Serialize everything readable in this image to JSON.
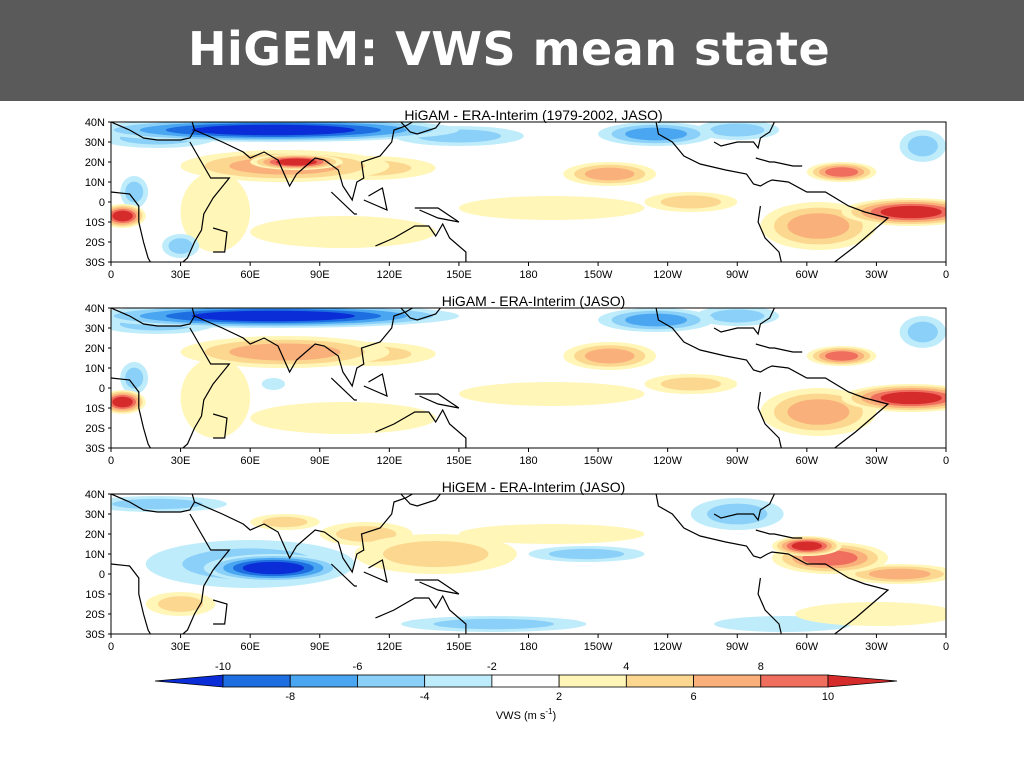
{
  "slide": {
    "title": "HiGEM: VWS mean state"
  },
  "panels": [
    {
      "title": "HiGAM - ERA-Interim (1979-2002, JASO)",
      "blobs": [
        {
          "lon": 70,
          "lat": 36,
          "rx": 80,
          "ry": 6,
          "val": -12
        },
        {
          "lon": 20,
          "lat": 32,
          "rx": 25,
          "ry": 5,
          "val": -5
        },
        {
          "lon": 150,
          "lat": 33,
          "rx": 28,
          "ry": 5,
          "val": -5
        },
        {
          "lon": 235,
          "lat": 34,
          "rx": 25,
          "ry": 6,
          "val": -6
        },
        {
          "lon": 270,
          "lat": 36,
          "rx": 18,
          "ry": 5,
          "val": -5
        },
        {
          "lon": 350,
          "lat": 28,
          "rx": 10,
          "ry": 8,
          "val": -5
        },
        {
          "lon": 10,
          "lat": 5,
          "rx": 6,
          "ry": 8,
          "val": -4
        },
        {
          "lon": 30,
          "lat": -22,
          "rx": 8,
          "ry": 6,
          "val": -4
        },
        {
          "lon": 75,
          "lat": 18,
          "rx": 45,
          "ry": 8,
          "val": 7
        },
        {
          "lon": 80,
          "lat": 20,
          "rx": 20,
          "ry": 4,
          "val": 10
        },
        {
          "lon": 110,
          "lat": 17,
          "rx": 30,
          "ry": 6,
          "val": 5
        },
        {
          "lon": 215,
          "lat": 14,
          "rx": 20,
          "ry": 6,
          "val": 7
        },
        {
          "lon": 315,
          "lat": 15,
          "rx": 15,
          "ry": 5,
          "val": 9
        },
        {
          "lon": 5,
          "lat": -7,
          "rx": 10,
          "ry": 6,
          "val": 10
        },
        {
          "lon": 345,
          "lat": -5,
          "rx": 30,
          "ry": 7,
          "val": 10
        },
        {
          "lon": 305,
          "lat": -12,
          "rx": 25,
          "ry": 12,
          "val": 6
        },
        {
          "lon": 250,
          "lat": 0,
          "rx": 20,
          "ry": 5,
          "val": 5
        },
        {
          "lon": 100,
          "lat": -15,
          "rx": 40,
          "ry": 8,
          "val": 3
        },
        {
          "lon": 190,
          "lat": -3,
          "rx": 40,
          "ry": 6,
          "val": 3
        },
        {
          "lon": 45,
          "lat": -5,
          "rx": 15,
          "ry": 20,
          "val": 3
        }
      ]
    },
    {
      "title": "HiGAM - ERA-Interim (JASO)",
      "blobs": [
        {
          "lon": 70,
          "lat": 36,
          "rx": 80,
          "ry": 6,
          "val": -12
        },
        {
          "lon": 20,
          "lat": 32,
          "rx": 25,
          "ry": 5,
          "val": -5
        },
        {
          "lon": 235,
          "lat": 34,
          "rx": 25,
          "ry": 6,
          "val": -6
        },
        {
          "lon": 270,
          "lat": 36,
          "rx": 18,
          "ry": 5,
          "val": -5
        },
        {
          "lon": 350,
          "lat": 28,
          "rx": 10,
          "ry": 8,
          "val": -5
        },
        {
          "lon": 10,
          "lat": 5,
          "rx": 6,
          "ry": 8,
          "val": -4
        },
        {
          "lon": 70,
          "lat": 2,
          "rx": 5,
          "ry": 3,
          "val": -3
        },
        {
          "lon": 75,
          "lat": 18,
          "rx": 45,
          "ry": 8,
          "val": 7
        },
        {
          "lon": 110,
          "lat": 17,
          "rx": 30,
          "ry": 6,
          "val": 5
        },
        {
          "lon": 215,
          "lat": 16,
          "rx": 20,
          "ry": 7,
          "val": 7
        },
        {
          "lon": 315,
          "lat": 16,
          "rx": 15,
          "ry": 5,
          "val": 9
        },
        {
          "lon": 5,
          "lat": -7,
          "rx": 10,
          "ry": 6,
          "val": 10
        },
        {
          "lon": 345,
          "lat": -5,
          "rx": 30,
          "ry": 7,
          "val": 10
        },
        {
          "lon": 305,
          "lat": -12,
          "rx": 25,
          "ry": 12,
          "val": 6
        },
        {
          "lon": 250,
          "lat": 2,
          "rx": 20,
          "ry": 5,
          "val": 5
        },
        {
          "lon": 100,
          "lat": -15,
          "rx": 40,
          "ry": 8,
          "val": 3
        },
        {
          "lon": 190,
          "lat": -3,
          "rx": 40,
          "ry": 6,
          "val": 3
        },
        {
          "lon": 45,
          "lat": -5,
          "rx": 15,
          "ry": 20,
          "val": 3
        }
      ]
    },
    {
      "title": "HiGEM - ERA-Interim (JASO)",
      "blobs": [
        {
          "lon": 70,
          "lat": 3,
          "rx": 30,
          "ry": 7,
          "val": -10
        },
        {
          "lon": 60,
          "lat": 5,
          "rx": 45,
          "ry": 12,
          "val": -5
        },
        {
          "lon": 20,
          "lat": 35,
          "rx": 30,
          "ry": 4,
          "val": -4
        },
        {
          "lon": 165,
          "lat": -25,
          "rx": 40,
          "ry": 4,
          "val": -4
        },
        {
          "lon": 205,
          "lat": 10,
          "rx": 25,
          "ry": 4,
          "val": -4
        },
        {
          "lon": 270,
          "lat": 30,
          "rx": 20,
          "ry": 8,
          "val": -4
        },
        {
          "lon": 290,
          "lat": -25,
          "rx": 30,
          "ry": 4,
          "val": -3
        },
        {
          "lon": 310,
          "lat": 8,
          "rx": 25,
          "ry": 8,
          "val": 9
        },
        {
          "lon": 300,
          "lat": 14,
          "rx": 15,
          "ry": 5,
          "val": 10
        },
        {
          "lon": 340,
          "lat": 0,
          "rx": 25,
          "ry": 5,
          "val": 6
        },
        {
          "lon": 140,
          "lat": 10,
          "rx": 35,
          "ry": 10,
          "val": 5
        },
        {
          "lon": 110,
          "lat": 20,
          "rx": 20,
          "ry": 6,
          "val": 4
        },
        {
          "lon": 75,
          "lat": 26,
          "rx": 15,
          "ry": 4,
          "val": 5
        },
        {
          "lon": 330,
          "lat": -20,
          "rx": 35,
          "ry": 6,
          "val": 3
        },
        {
          "lon": 30,
          "lat": -15,
          "rx": 15,
          "ry": 6,
          "val": 4
        },
        {
          "lon": 190,
          "lat": 20,
          "rx": 40,
          "ry": 5,
          "val": 3
        }
      ]
    }
  ],
  "axes": {
    "lat_labels": [
      "40N",
      "30N",
      "20N",
      "10N",
      "0",
      "10S",
      "20S",
      "30S"
    ],
    "lon_labels": [
      "0",
      "30E",
      "60E",
      "90E",
      "120E",
      "150E",
      "180",
      "150W",
      "120W",
      "90W",
      "60W",
      "30W",
      "0"
    ]
  },
  "colorbar": {
    "upper_labels": [
      "-10",
      "-6",
      "-2",
      "4",
      "8"
    ],
    "lower_labels": [
      "-8",
      "-4",
      "2",
      "6",
      "10"
    ],
    "label": "VWS (m s",
    "label_sup": "-1",
    "label_end": ")",
    "levels": [
      -10,
      -8,
      -6,
      -4,
      -2,
      2,
      4,
      6,
      8,
      10
    ],
    "colors": [
      "#0a2dd8",
      "#1d6ee0",
      "#4aa6f0",
      "#8ad0f8",
      "#bfecfb",
      "#ffffff",
      "#fff6b8",
      "#fcd790",
      "#f9b07a",
      "#ef6e5e",
      "#d62b2b"
    ]
  }
}
